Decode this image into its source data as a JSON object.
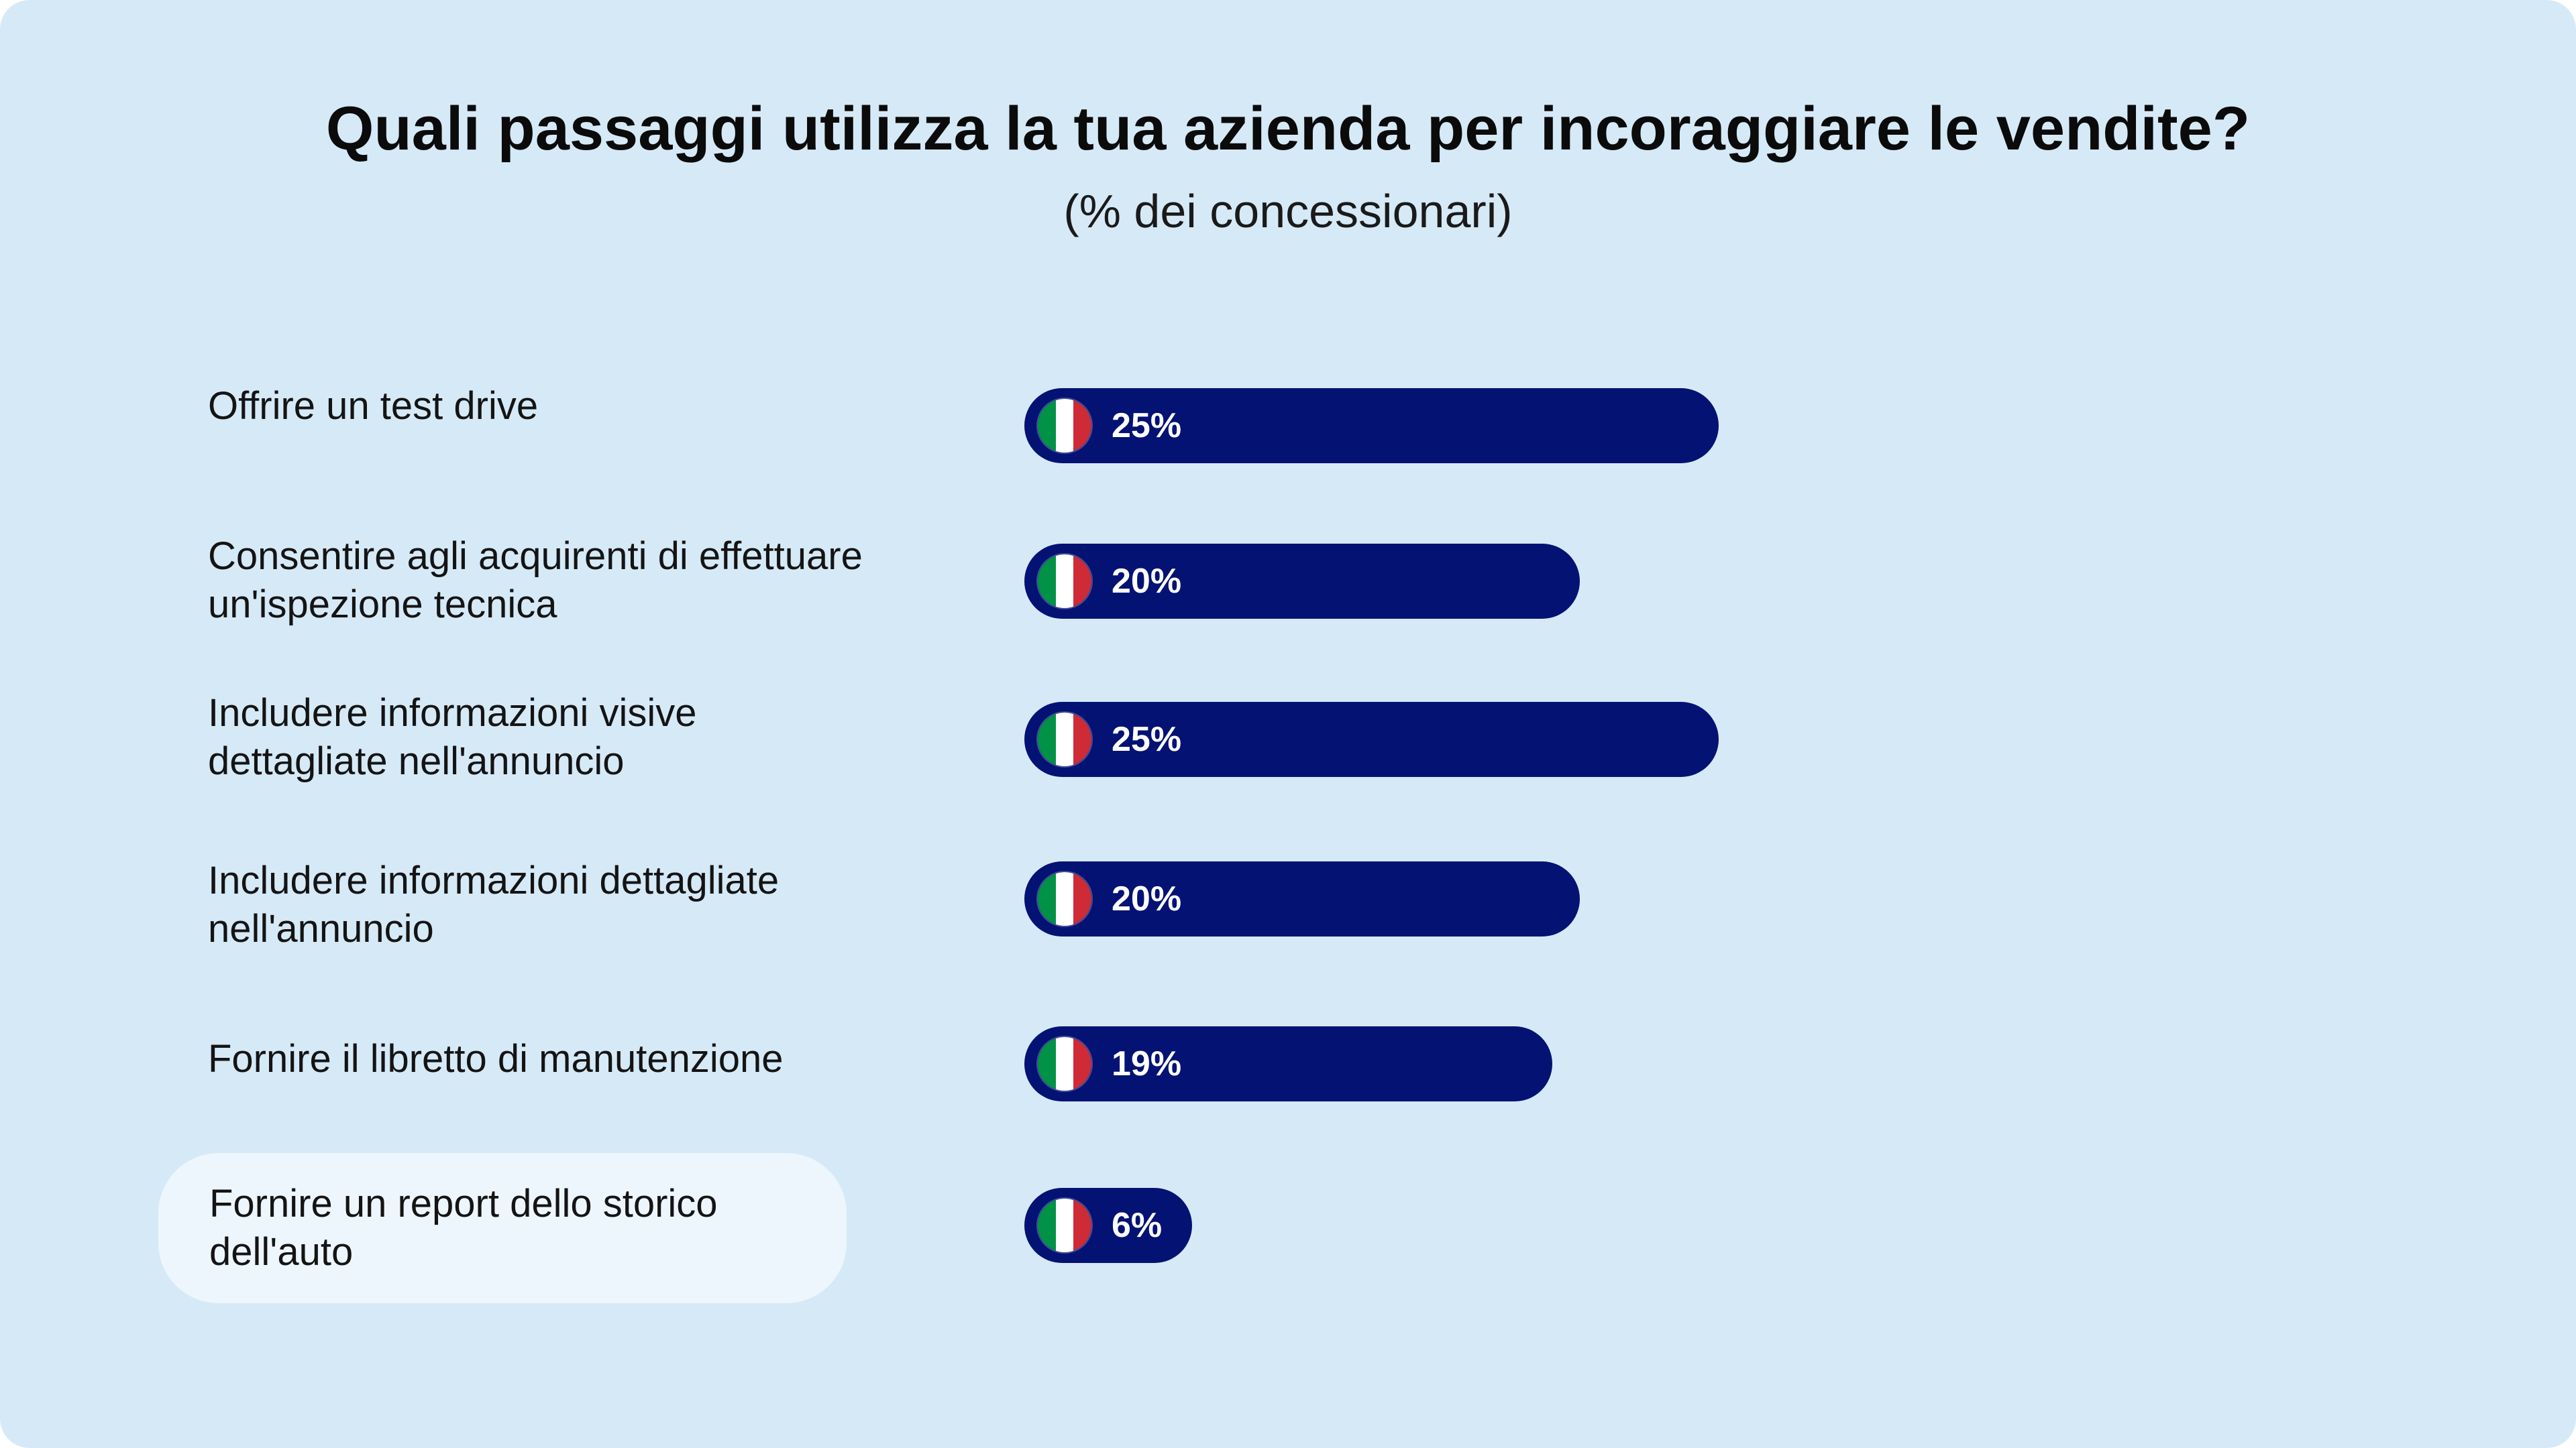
{
  "chart_data": {
    "type": "bar",
    "orientation": "horizontal",
    "title": "Quali passaggi utilizza la tua azienda per incoraggiare le vendite?",
    "subtitle": "(% dei concessionari)",
    "xlim": [
      0,
      25
    ],
    "series": [
      {
        "name": "Italia",
        "flag": "italy-flag-icon"
      }
    ],
    "bars": [
      {
        "category": "Offrire un test drive",
        "value": 25,
        "label": "25%",
        "highlight": false
      },
      {
        "category": "Consentire agli acquirenti di effettuare un'ispezione tecnica",
        "value": 20,
        "label": "20%",
        "highlight": false
      },
      {
        "category": "Includere informazioni visive dettagliate nell'annuncio",
        "value": 25,
        "label": "25%",
        "highlight": false
      },
      {
        "category": "Includere informazioni dettagliate nell'annuncio",
        "value": 20,
        "label": "20%",
        "highlight": false
      },
      {
        "category": "Fornire il libretto di manutenzione",
        "value": 19,
        "label": "19%",
        "highlight": false
      },
      {
        "category": "Fornire un report dello storico dell'auto",
        "value": 6,
        "label": "6%",
        "highlight": true
      }
    ]
  },
  "colors": {
    "background": "#d6e9f7",
    "bar": "#031273",
    "highlight": "#eef6fd",
    "flag_green": "#009246",
    "flag_white": "#ffffff",
    "flag_red": "#ce2b37"
  }
}
